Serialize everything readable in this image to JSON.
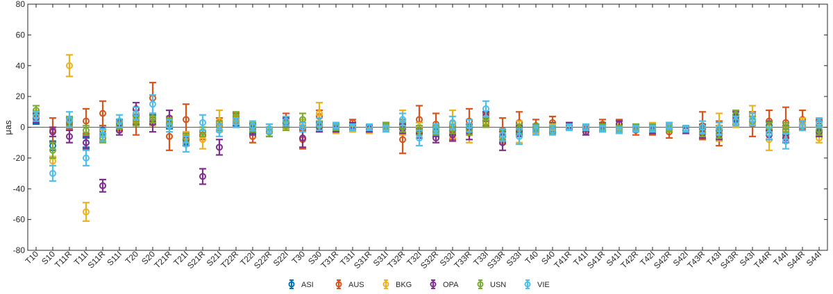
{
  "chart_data": {
    "type": "scatter",
    "ylabel": "μas",
    "ylim": [
      -80,
      80
    ],
    "yticks": [
      -80,
      -60,
      -40,
      -20,
      0,
      20,
      40,
      60,
      80
    ],
    "grid": false,
    "zero_line": true,
    "legend_position": "bottom",
    "categories": [
      "T10",
      "S10",
      "T11R",
      "T11I",
      "S11R",
      "S11I",
      "T20",
      "S20",
      "T21R",
      "T21I",
      "S21R",
      "S21I",
      "T22R",
      "T22I",
      "S22R",
      "S22I",
      "T30",
      "S30",
      "T31R",
      "T31I",
      "S31R",
      "S31I",
      "T32R",
      "T32I",
      "S32R",
      "S32I",
      "T33R",
      "T33I",
      "S33R",
      "S33I",
      "T40",
      "S40",
      "T41R",
      "T41I",
      "S41R",
      "S41I",
      "T42R",
      "T42I",
      "S42R",
      "S42I",
      "T43R",
      "T43I",
      "S43R",
      "S43I",
      "T44R",
      "T44I",
      "S44R",
      "S44I"
    ],
    "series": [
      {
        "name": "ASI",
        "color": "#0072BD",
        "values": [
          5,
          -12,
          3,
          -10,
          -2,
          2,
          5,
          5,
          2,
          -8,
          -3,
          1,
          4,
          -1,
          -3,
          3,
          2,
          1,
          0,
          0,
          -1,
          0,
          2,
          0,
          -3,
          -2,
          -1,
          7,
          -6,
          -2,
          -1,
          0,
          1,
          -1,
          1,
          -1,
          0,
          0,
          -1,
          -2,
          -1,
          -2,
          5,
          4,
          1,
          -2,
          1,
          1
        ],
        "errors": [
          3,
          3,
          3,
          3,
          3,
          3,
          3,
          3,
          3,
          3,
          3,
          3,
          3,
          3,
          3,
          3,
          3,
          3,
          2,
          2,
          2,
          2,
          3,
          3,
          3,
          3,
          3,
          3,
          3,
          3,
          3,
          3,
          2,
          2,
          2,
          2,
          2,
          2,
          2,
          2,
          3,
          3,
          3,
          3,
          3,
          3,
          3,
          3
        ]
      },
      {
        "name": "AUS",
        "color": "#D95319",
        "values": [
          6,
          -2,
          2,
          4,
          9,
          1,
          3,
          19,
          -6,
          5,
          -5,
          3,
          6,
          -6,
          -1,
          5,
          -8,
          7,
          1,
          3,
          -1,
          1,
          -8,
          5,
          2,
          -4,
          4,
          5,
          -2,
          3,
          1,
          3,
          1,
          -1,
          2,
          2,
          -2,
          -2,
          -3,
          -1,
          1,
          -4,
          3,
          2,
          4,
          3,
          5,
          1
        ],
        "errors": [
          3,
          8,
          3,
          8,
          8,
          3,
          8,
          10,
          9,
          10,
          3,
          3,
          3,
          4,
          3,
          4,
          6,
          4,
          2,
          2,
          2,
          2,
          9,
          9,
          7,
          4,
          8,
          4,
          8,
          7,
          4,
          4,
          2,
          2,
          3,
          3,
          3,
          3,
          4,
          2,
          9,
          8,
          3,
          8,
          7,
          10,
          6,
          4
        ]
      },
      {
        "name": "BKG",
        "color": "#EDB120",
        "values": [
          8,
          -22,
          40,
          -55,
          -5,
          0,
          6,
          4,
          4,
          -6,
          -8,
          4,
          5,
          -2,
          -1,
          2,
          2,
          9,
          -2,
          -1,
          -2,
          0,
          3,
          0,
          -1,
          2,
          -4,
          5,
          -8,
          -3,
          -2,
          0,
          1,
          0,
          -1,
          0,
          0,
          1,
          0,
          -2,
          -3,
          0,
          3,
          8,
          -8,
          -3,
          3,
          -7
        ],
        "errors": [
          3,
          3,
          7,
          6,
          3,
          3,
          3,
          3,
          3,
          3,
          6,
          7,
          3,
          3,
          3,
          3,
          3,
          7,
          2,
          2,
          2,
          2,
          8,
          3,
          3,
          9,
          6,
          3,
          3,
          7,
          2,
          2,
          2,
          2,
          2,
          2,
          2,
          2,
          2,
          2,
          3,
          9,
          3,
          6,
          7,
          3,
          3,
          3
        ]
      },
      {
        "name": "OPA",
        "color": "#7E2F8E",
        "values": [
          6,
          -3,
          -6,
          -10,
          -38,
          -2,
          12,
          3,
          6,
          -8,
          -32,
          -13,
          3,
          -2,
          -3,
          3,
          -7,
          0,
          -1,
          1,
          -1,
          1,
          -1,
          -4,
          -7,
          -5,
          -3,
          7,
          -10,
          -3,
          0,
          -2,
          1,
          -3,
          0,
          2,
          0,
          -2,
          1,
          -2,
          -4,
          -5,
          7,
          4,
          -5,
          -7,
          1,
          -3
        ],
        "errors": [
          3,
          3,
          4,
          4,
          4,
          3,
          4,
          6,
          5,
          4,
          5,
          5,
          3,
          3,
          3,
          3,
          6,
          3,
          2,
          2,
          2,
          2,
          3,
          3,
          3,
          4,
          5,
          3,
          5,
          3,
          2,
          2,
          2,
          2,
          2,
          2,
          2,
          2,
          2,
          2,
          3,
          3,
          3,
          3,
          3,
          3,
          3,
          3
        ]
      },
      {
        "name": "USN",
        "color": "#77AC30",
        "values": [
          11,
          -15,
          4,
          -2,
          -7,
          1,
          4,
          6,
          3,
          -7,
          -3,
          1,
          7,
          0,
          -3,
          1,
          5,
          1,
          0,
          0,
          0,
          1,
          0,
          -2,
          -2,
          -1,
          -2,
          3,
          -5,
          -1,
          0,
          -2,
          0,
          0,
          0,
          -1,
          0,
          0,
          -1,
          -1,
          -3,
          -4,
          8,
          4,
          0,
          0,
          1,
          -2
        ],
        "errors": [
          3,
          5,
          3,
          3,
          3,
          2,
          3,
          3,
          3,
          3,
          3,
          3,
          3,
          3,
          3,
          3,
          4,
          3,
          2,
          2,
          2,
          2,
          3,
          3,
          3,
          3,
          3,
          3,
          3,
          3,
          2,
          2,
          2,
          2,
          2,
          2,
          2,
          2,
          2,
          2,
          3,
          3,
          3,
          3,
          3,
          3,
          3,
          3
        ]
      },
      {
        "name": "VIE",
        "color": "#4DBEEE",
        "values": [
          7,
          -30,
          5,
          -20,
          -5,
          4,
          9,
          15,
          1,
          -11,
          3,
          -2,
          3,
          1,
          -1,
          4,
          0,
          2,
          1,
          0,
          0,
          -1,
          5,
          -7,
          -1,
          3,
          1,
          12,
          -5,
          -6,
          -2,
          -2,
          0,
          0,
          -1,
          -2,
          -1,
          -1,
          1,
          -1,
          0,
          -1,
          4,
          5,
          -4,
          -9,
          1,
          3
        ],
        "errors": [
          3,
          5,
          5,
          5,
          4,
          4,
          4,
          6,
          4,
          5,
          5,
          4,
          3,
          3,
          3,
          3,
          3,
          4,
          2,
          2,
          2,
          2,
          4,
          5,
          3,
          4,
          4,
          5,
          4,
          5,
          3,
          3,
          2,
          2,
          2,
          2,
          2,
          2,
          2,
          2,
          4,
          4,
          3,
          4,
          4,
          5,
          3,
          3
        ]
      }
    ]
  }
}
